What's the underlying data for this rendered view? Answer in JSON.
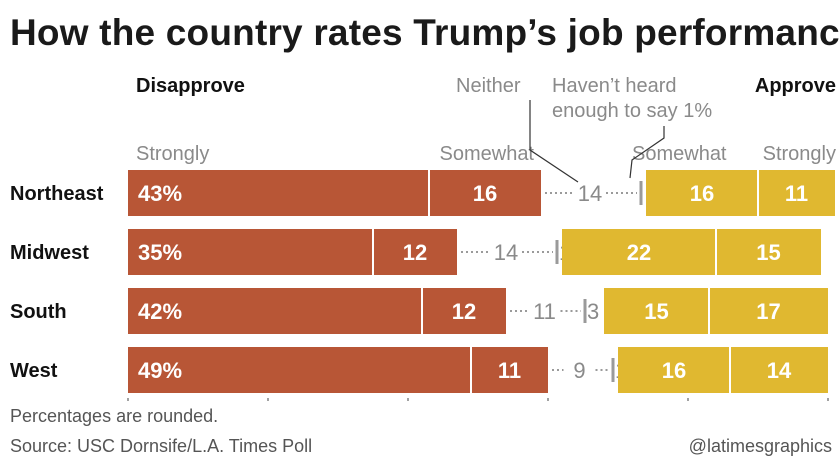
{
  "title": "How the country rates Trump’s job performance",
  "colors": {
    "disapprove": "#b85636",
    "approve": "#e0b830",
    "neither_line": "#9a9a9a",
    "text_gray": "#8a8a8a"
  },
  "chart_data": {
    "type": "bar",
    "orientation": "horizontal",
    "stacked": true,
    "title": "How the country rates Trump’s job performance",
    "group_labels": {
      "disapprove": "Disapprove",
      "approve": "Approve"
    },
    "column_labels": {
      "strongly_disapprove": "Strongly",
      "somewhat_disapprove": "Somewhat",
      "neither": "Neither",
      "havent_heard": "Haven’t heard enough to say 1%",
      "somewhat_approve": "Somewhat",
      "strongly_approve": "Strongly"
    },
    "categories": [
      "Northeast",
      "Midwest",
      "South",
      "West"
    ],
    "series": [
      {
        "name": "Strongly",
        "group": "Disapprove",
        "values": [
          43,
          35,
          42,
          49
        ],
        "labels": [
          "43%",
          "35%",
          "42%",
          "49%"
        ]
      },
      {
        "name": "Somewhat",
        "group": "Disapprove",
        "values": [
          16,
          12,
          12,
          11
        ],
        "labels": [
          "16",
          "12",
          "12",
          "11"
        ]
      },
      {
        "name": "Neither",
        "values": [
          14,
          14,
          11,
          9
        ],
        "labels": [
          "14",
          "14",
          "11",
          "9"
        ]
      },
      {
        "name": "Haven’t heard enough to say",
        "values": [
          1,
          1,
          3,
          1
        ],
        "labels": [
          "",
          "1",
          "3",
          "1"
        ]
      },
      {
        "name": "Somewhat",
        "group": "Approve",
        "values": [
          16,
          22,
          15,
          16
        ],
        "labels": [
          "16",
          "22",
          "15",
          "16"
        ]
      },
      {
        "name": "Strongly",
        "group": "Approve",
        "values": [
          11,
          15,
          17,
          14
        ],
        "labels": [
          "11",
          "15",
          "17",
          "14"
        ]
      }
    ],
    "xlim": [
      0,
      100
    ],
    "grid": false,
    "legend": "top"
  },
  "footer": {
    "note": "Percentages are rounded.",
    "source": "Source: USC Dornsife/L.A. Times Poll",
    "credit": "@latimesgraphics"
  }
}
